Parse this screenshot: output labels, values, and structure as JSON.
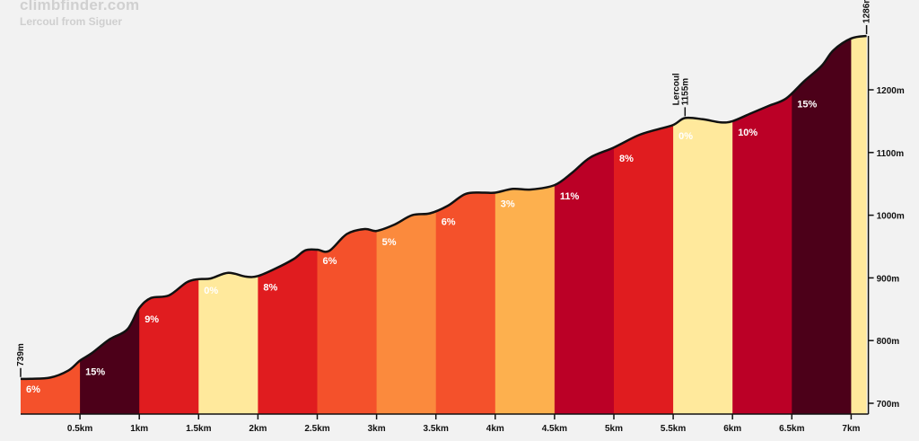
{
  "brand": "climbfinder.com",
  "subtitle": "Lercoul from Siguer",
  "chart_data": {
    "type": "area",
    "title": "climbfinder.com",
    "subtitle": "Lercoul from Siguer",
    "xlabel": "",
    "ylabel": "",
    "xlim": [
      0,
      7.25
    ],
    "ylim": [
      690,
      1300
    ],
    "x_ticks": [
      {
        "v": 0.5,
        "label": "0.5km"
      },
      {
        "v": 1,
        "label": "1km"
      },
      {
        "v": 1.5,
        "label": "1.5km"
      },
      {
        "v": 2,
        "label": "2km"
      },
      {
        "v": 2.5,
        "label": "2.5km"
      },
      {
        "v": 3,
        "label": "3km"
      },
      {
        "v": 3.5,
        "label": "3.5km"
      },
      {
        "v": 4,
        "label": "4km"
      },
      {
        "v": 4.5,
        "label": "4.5km"
      },
      {
        "v": 5,
        "label": "5km"
      },
      {
        "v": 5.5,
        "label": "5.5km"
      },
      {
        "v": 6,
        "label": "6km"
      },
      {
        "v": 6.5,
        "label": "6.5km"
      },
      {
        "v": 7,
        "label": "7km"
      }
    ],
    "y_ticks": [
      {
        "v": 700,
        "label": "700m"
      },
      {
        "v": 800,
        "label": "800m"
      },
      {
        "v": 900,
        "label": "900m"
      },
      {
        "v": 1000,
        "label": "1000m"
      },
      {
        "v": 1100,
        "label": "1100m"
      },
      {
        "v": 1200,
        "label": "1200m"
      }
    ],
    "segments": [
      {
        "x0": 0.0,
        "x1": 0.5,
        "gradient": "6%",
        "color": "#f4512b"
      },
      {
        "x0": 0.5,
        "x1": 1.0,
        "gradient": "15%",
        "color": "#4c0019"
      },
      {
        "x0": 1.0,
        "x1": 1.5,
        "gradient": "9%",
        "color": "#e01c1f"
      },
      {
        "x0": 1.5,
        "x1": 2.0,
        "gradient": "0%",
        "color": "#ffe99c"
      },
      {
        "x0": 2.0,
        "x1": 2.5,
        "gradient": "8%",
        "color": "#e01c1f"
      },
      {
        "x0": 2.5,
        "x1": 3.0,
        "gradient": "6%",
        "color": "#f4512b"
      },
      {
        "x0": 3.0,
        "x1": 3.5,
        "gradient": "5%",
        "color": "#fb8a3d"
      },
      {
        "x0": 3.5,
        "x1": 4.0,
        "gradient": "6%",
        "color": "#f4512b"
      },
      {
        "x0": 4.0,
        "x1": 4.5,
        "gradient": "3%",
        "color": "#fdb04e"
      },
      {
        "x0": 4.5,
        "x1": 5.0,
        "gradient": "11%",
        "color": "#bb0026"
      },
      {
        "x0": 5.0,
        "x1": 5.5,
        "gradient": "8%",
        "color": "#e01c1f"
      },
      {
        "x0": 5.5,
        "x1": 6.0,
        "gradient": "0%",
        "color": "#ffe99c"
      },
      {
        "x0": 6.0,
        "x1": 6.5,
        "gradient": "10%",
        "color": "#bb0026"
      },
      {
        "x0": 6.5,
        "x1": 7.0,
        "gradient": "15%",
        "color": "#4c0019"
      },
      {
        "x0": 7.0,
        "x1": 7.13,
        "gradient": "",
        "color": "#ffe99c"
      }
    ],
    "profile": [
      [
        0.0,
        739
      ],
      [
        0.08,
        739
      ],
      [
        0.25,
        741
      ],
      [
        0.4,
        752
      ],
      [
        0.5,
        768
      ],
      [
        0.6,
        780
      ],
      [
        0.75,
        802
      ],
      [
        0.9,
        818
      ],
      [
        1.0,
        852
      ],
      [
        1.1,
        868
      ],
      [
        1.25,
        872
      ],
      [
        1.4,
        893
      ],
      [
        1.5,
        898
      ],
      [
        1.6,
        899
      ],
      [
        1.75,
        908
      ],
      [
        1.9,
        902
      ],
      [
        2.0,
        903
      ],
      [
        2.15,
        915
      ],
      [
        2.3,
        930
      ],
      [
        2.4,
        944
      ],
      [
        2.5,
        945
      ],
      [
        2.6,
        943
      ],
      [
        2.75,
        970
      ],
      [
        2.9,
        978
      ],
      [
        3.0,
        975
      ],
      [
        3.15,
        985
      ],
      [
        3.3,
        1000
      ],
      [
        3.45,
        1003
      ],
      [
        3.6,
        1015
      ],
      [
        3.75,
        1034
      ],
      [
        3.9,
        1036
      ],
      [
        4.0,
        1036
      ],
      [
        4.15,
        1042
      ],
      [
        4.3,
        1041
      ],
      [
        4.5,
        1048
      ],
      [
        4.65,
        1068
      ],
      [
        4.8,
        1092
      ],
      [
        5.0,
        1108
      ],
      [
        5.2,
        1127
      ],
      [
        5.35,
        1136
      ],
      [
        5.5,
        1144
      ],
      [
        5.6,
        1155
      ],
      [
        5.75,
        1153
      ],
      [
        5.9,
        1148
      ],
      [
        6.0,
        1150
      ],
      [
        6.15,
        1162
      ],
      [
        6.3,
        1174
      ],
      [
        6.45,
        1186
      ],
      [
        6.6,
        1213
      ],
      [
        6.75,
        1238
      ],
      [
        6.85,
        1263
      ],
      [
        7.0,
        1282
      ],
      [
        7.13,
        1286
      ]
    ],
    "annotations": [
      {
        "x": 0.0,
        "y": 739,
        "text": [
          "739m"
        ]
      },
      {
        "x": 5.6,
        "y": 1155,
        "text": [
          "Lercoul",
          "1155m"
        ]
      },
      {
        "x": 7.13,
        "y": 1286,
        "text": [
          "1286m"
        ]
      }
    ],
    "grid": false,
    "legend": "none"
  }
}
